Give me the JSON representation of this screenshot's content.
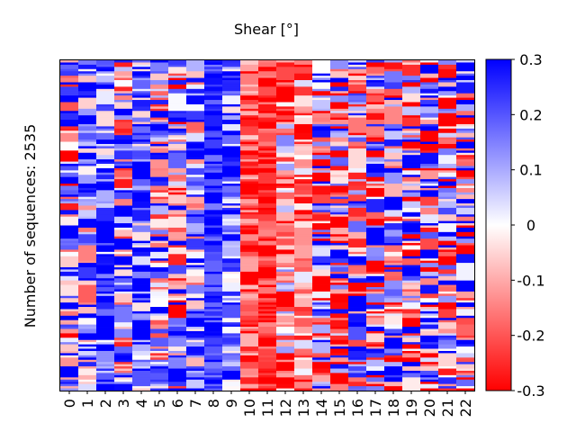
{
  "chart_data": {
    "type": "heatmap",
    "title": "Shear [°]",
    "xlabel": "",
    "ylabel": "Number of sequences: 2535",
    "categories": [
      "0",
      "1",
      "2",
      "3",
      "4",
      "5",
      "6",
      "7",
      "8",
      "9",
      "10",
      "11",
      "12",
      "13",
      "14",
      "15",
      "16",
      "17",
      "18",
      "19",
      "20",
      "21",
      "22"
    ],
    "column_mean": [
      0.05,
      0.12,
      0.2,
      0.08,
      0.18,
      0.07,
      0.02,
      0.1,
      0.28,
      0.15,
      -0.22,
      -0.25,
      -0.1,
      -0.15,
      0.0,
      -0.05,
      0.05,
      0.0,
      0.05,
      0.0,
      0.02,
      0.0,
      0.05
    ],
    "column_spread": [
      0.24,
      0.2,
      0.16,
      0.22,
      0.16,
      0.2,
      0.24,
      0.18,
      0.08,
      0.12,
      0.1,
      0.07,
      0.16,
      0.12,
      0.24,
      0.24,
      0.24,
      0.24,
      0.24,
      0.24,
      0.24,
      0.24,
      0.24
    ],
    "colorbar": {
      "min": -0.3,
      "max": 0.3,
      "ticks": [
        "0.3",
        "0.2",
        "0.1",
        "0",
        "-0.1",
        "-0.2",
        "-0.3"
      ],
      "colormap": "bwr (red = negative, white = 0, blue = positive)"
    },
    "colors": {
      "negative": "#ff0000",
      "zero": "#ffffff",
      "positive": "#0000ff"
    },
    "grid": false
  }
}
